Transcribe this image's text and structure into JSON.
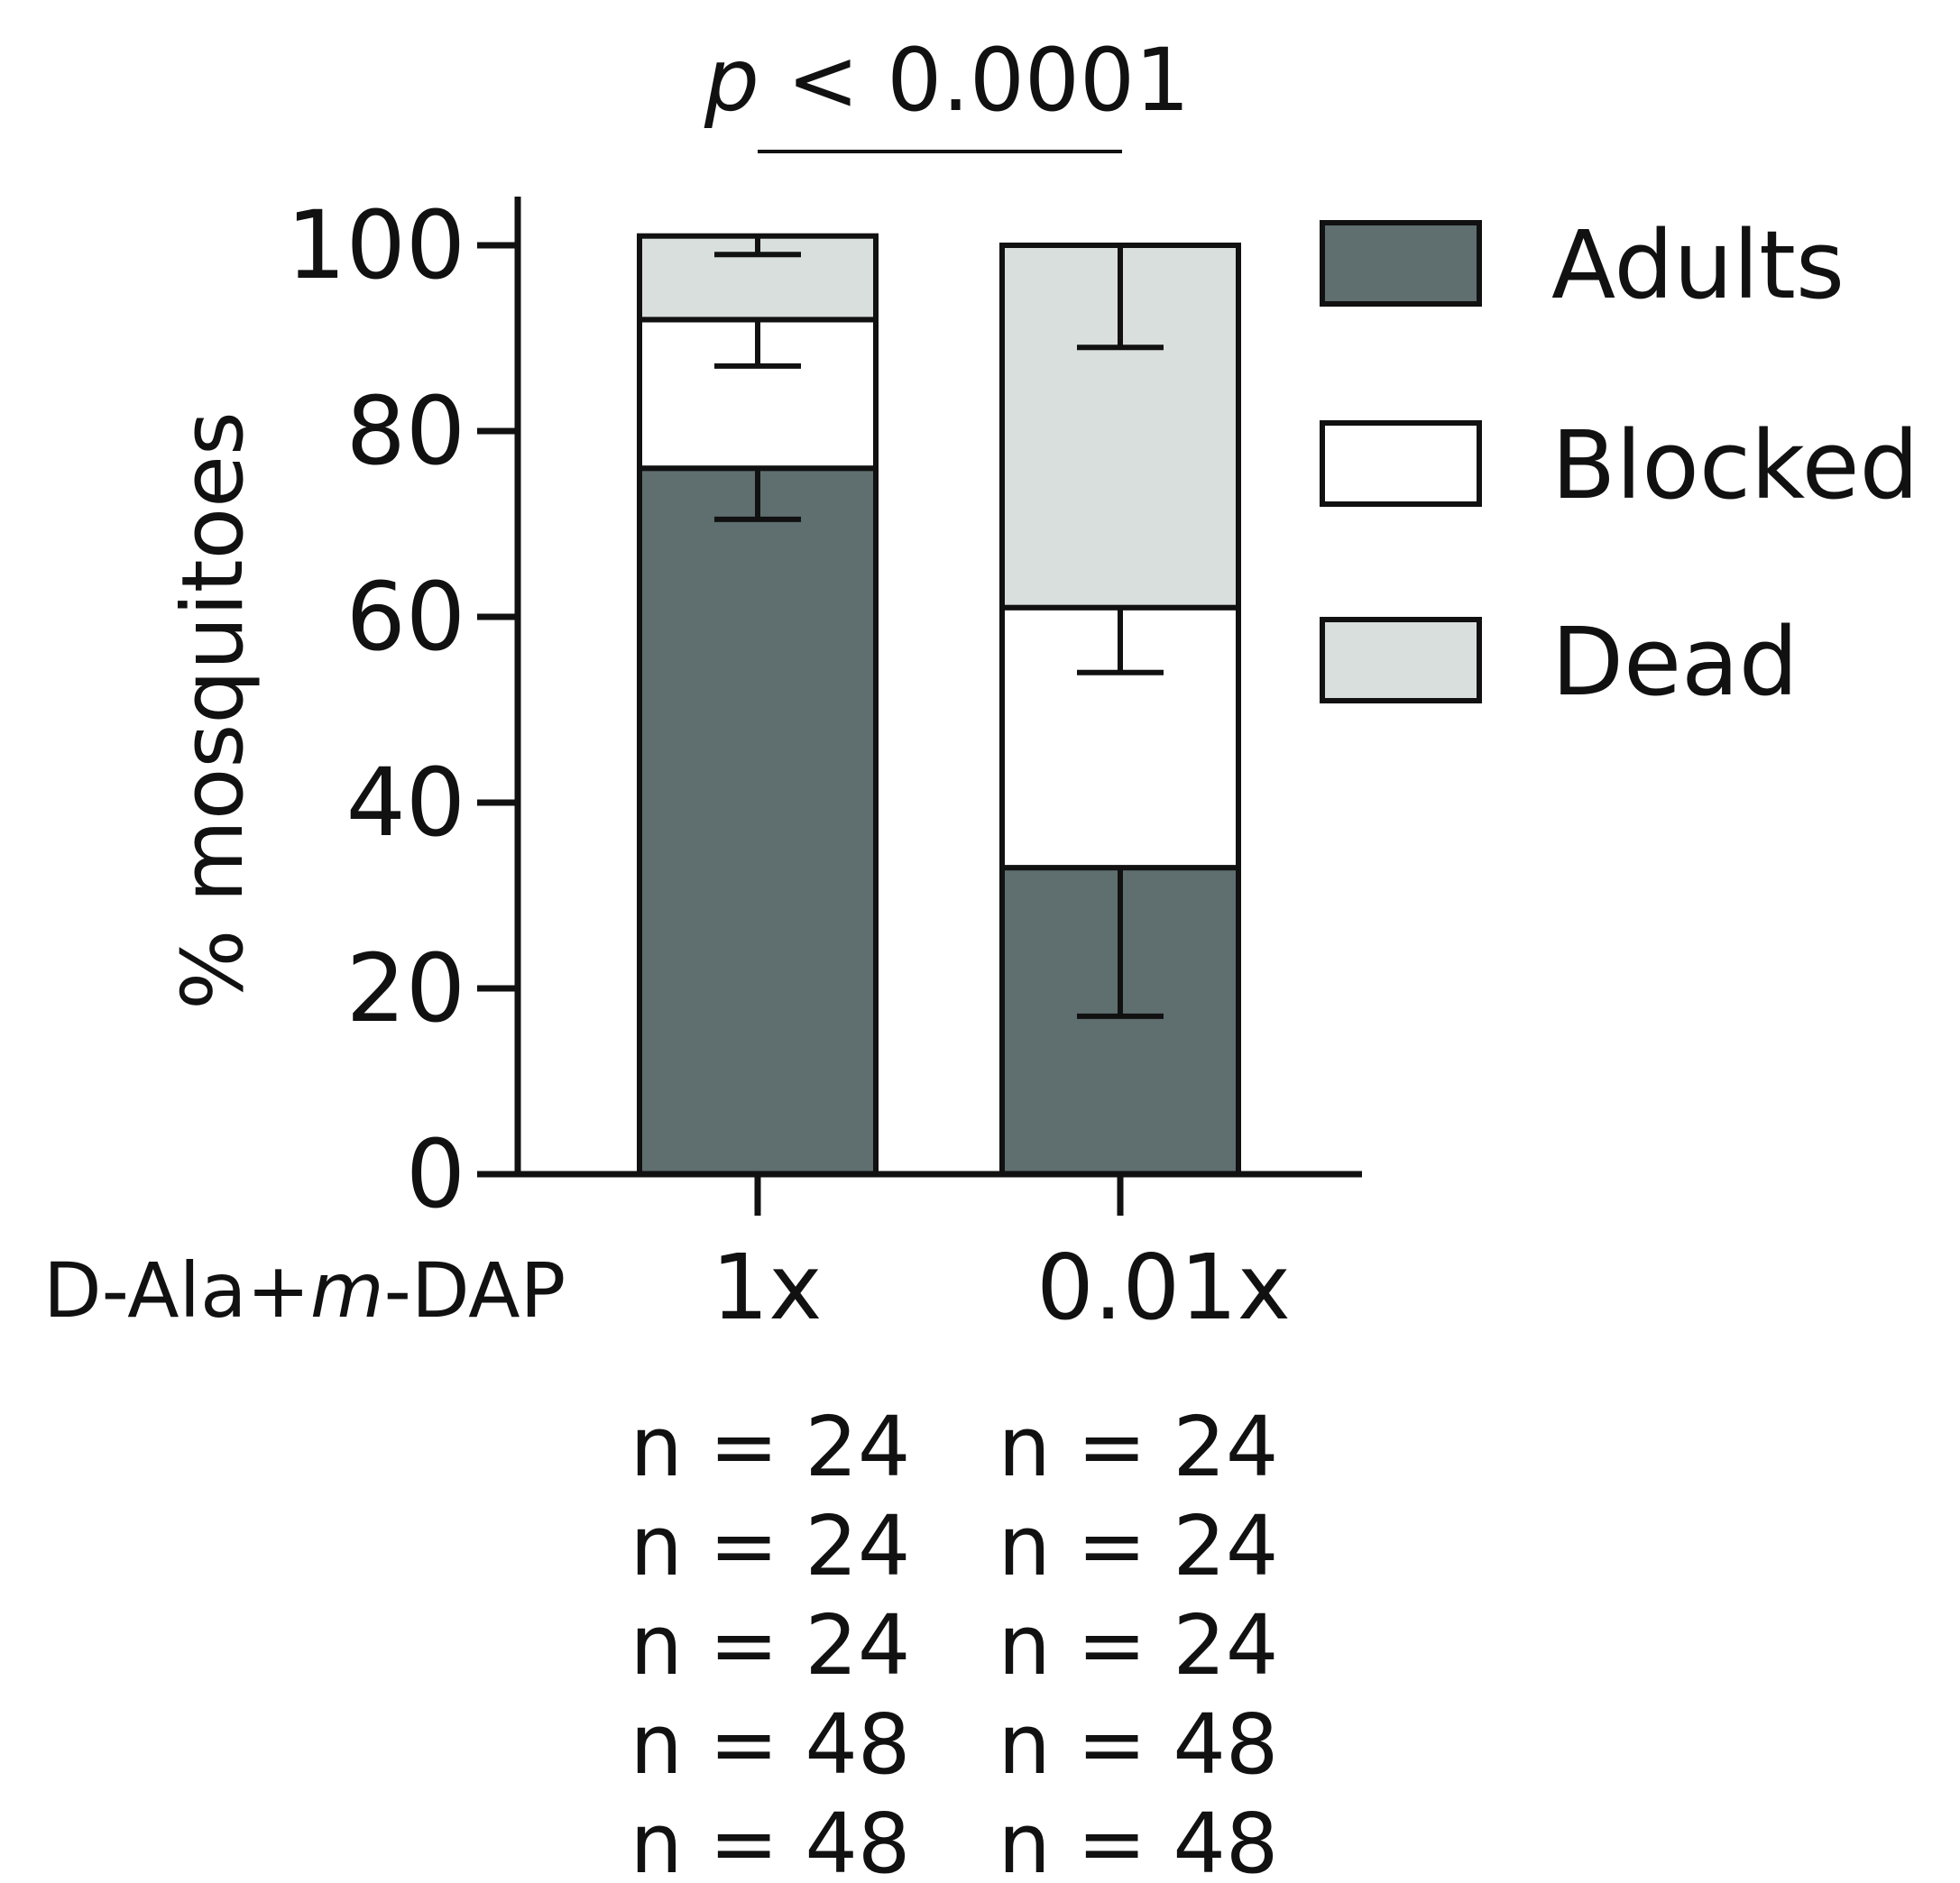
{
  "chart_data": {
    "type": "bar",
    "stacked": true,
    "ylabel": "% mosquitoes",
    "ylim": [
      0,
      100
    ],
    "yticks": [
      0,
      20,
      40,
      60,
      80,
      100
    ],
    "group_label_prefix": "D-Ala+",
    "group_label_italic": "m",
    "group_label_suffix": "-DAP",
    "categories": [
      "1x",
      "0.01x"
    ],
    "series": [
      {
        "name": "Adults",
        "values": [
          76.0,
          33.0
        ],
        "error_low": [
          70.5,
          17.0
        ],
        "error_high": [
          76.0,
          33.0
        ],
        "error_dir": "down",
        "color": "#5f6e6f"
      },
      {
        "name": "Blocked",
        "values": [
          16.0,
          28.0
        ],
        "error_low": [
          87.0,
          54.0
        ],
        "error_high": [
          92.0,
          61.0
        ],
        "error_dir": "down",
        "color": "#ffffff"
      },
      {
        "name": "Dead",
        "values": [
          9.0,
          39.0
        ],
        "error_low": [
          99.0,
          89.0
        ],
        "error_high": [
          101.0,
          100.0
        ],
        "error_dir": "down",
        "color": "#d9dfdd"
      }
    ],
    "significance": {
      "p_italic": "p",
      "text": " < 0.0001"
    },
    "n_table": [
      [
        "n = 24",
        "n = 24"
      ],
      [
        "n = 24",
        "n = 24"
      ],
      [
        "n = 24",
        "n = 24"
      ],
      [
        "n = 48",
        "n = 48"
      ],
      [
        "n = 48",
        "n = 48"
      ]
    ],
    "legend_position": "right"
  }
}
